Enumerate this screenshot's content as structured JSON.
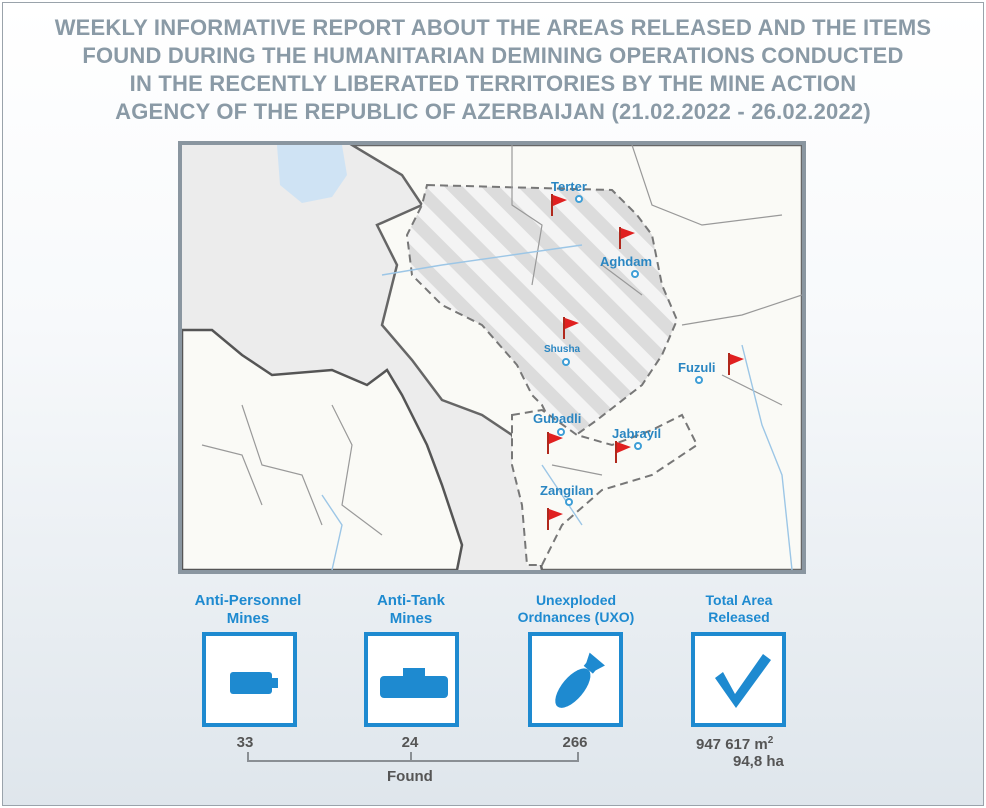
{
  "title": {
    "line1": "WEEKLY INFORMATIVE REPORT ABOUT THE AREAS RELEASED AND THE ITEMS",
    "line2": "FOUND DURING THE HUMANITARIAN DEMINING OPERATIONS CONDUCTED",
    "line3": "IN THE RECENTLY LIBERATED TERRITORIES BY THE MINE ACTION",
    "line4": "AGENCY OF THE REPUBLIC OF AZERBAIJAN (21.02.2022 - 26.02.2022)"
  },
  "map": {
    "cities": {
      "terter": "Terter",
      "aghdam": "Aghdam",
      "shusha": "Shusha",
      "fuzuli": "Fuzuli",
      "gubadli": "Gubadli",
      "jabrayil": "Jabrayil",
      "zangilan": "Zangilan"
    }
  },
  "stats": {
    "ap_line1": "Anti-Personnel",
    "ap_line2": "Mines",
    "at_line1": "Anti-Tank",
    "at_line2": "Mines",
    "uxo_line1": "Unexploded",
    "uxo_line2": "Ordnances (UXO)",
    "area_line1": "Total Area",
    "area_line2": "Released",
    "ap_count": "33",
    "at_count": "24",
    "uxo_count": "266",
    "found_label": "Found",
    "area_m2_value": "947 617",
    "area_m2_unit": "m",
    "area_m2_sup": "2",
    "area_ha_value": "94,8",
    "area_ha_unit": "ha"
  },
  "colors": {
    "title": "#8a9aa6",
    "accent": "#1e8ad0",
    "flag": "#e02020",
    "map_frame": "#8a96a0"
  },
  "icons": {
    "ap": "anti-personnel-mine-icon",
    "at": "anti-tank-mine-icon",
    "uxo": "bomb-icon",
    "area": "checkmark-icon",
    "flag": "red-flag-icon",
    "pin": "location-pin-icon"
  }
}
